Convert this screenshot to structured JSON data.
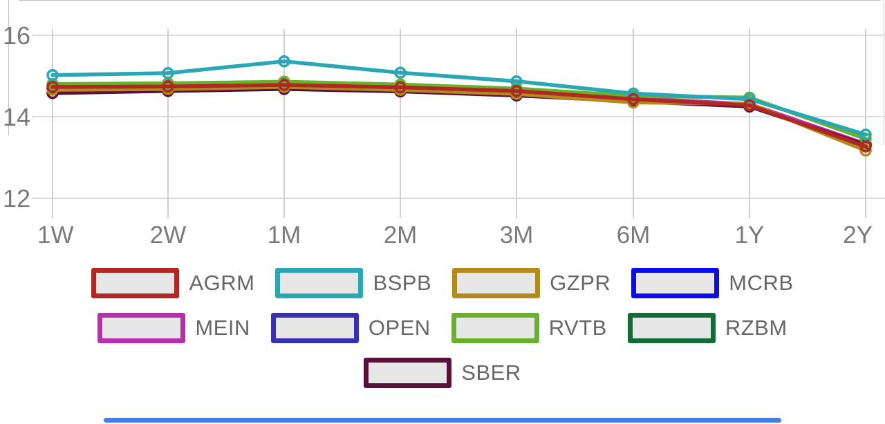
{
  "chart_data": {
    "type": "line",
    "x_categories": [
      "1W",
      "2W",
      "1M",
      "2M",
      "3M",
      "6M",
      "1Y",
      "2Y"
    ],
    "y_ticks": [
      16,
      14,
      12
    ],
    "ylim": [
      11.5,
      16.85
    ],
    "grid": true,
    "legend_position": "bottom",
    "series": [
      {
        "name": "AGRM",
        "color": "#b12823",
        "values": [
          14.73,
          14.74,
          14.78,
          14.72,
          14.63,
          14.43,
          14.28,
          13.27
        ]
      },
      {
        "name": "BSPB",
        "color": "#2ba7b4",
        "values": [
          15.02,
          15.07,
          15.36,
          15.08,
          14.87,
          14.57,
          14.43,
          13.56
        ]
      },
      {
        "name": "GZPR",
        "color": "#b5891c",
        "values": [
          14.66,
          14.68,
          14.73,
          14.66,
          14.56,
          14.35,
          14.32,
          13.17
        ]
      },
      {
        "name": "MCRB",
        "color": "#0b0bf0",
        "values": [
          14.7,
          14.71,
          14.76,
          14.7,
          14.6,
          14.41,
          14.3,
          13.3
        ]
      },
      {
        "name": "MEIN",
        "color": "#b72fae",
        "values": [
          14.77,
          14.77,
          14.81,
          14.74,
          14.64,
          14.45,
          14.31,
          13.33
        ]
      },
      {
        "name": "OPEN",
        "color": "#382fb2",
        "values": [
          14.69,
          14.7,
          14.75,
          14.69,
          14.59,
          14.42,
          14.29,
          13.29
        ]
      },
      {
        "name": "RVTB",
        "color": "#68b22b",
        "values": [
          14.8,
          14.82,
          14.86,
          14.79,
          14.69,
          14.51,
          14.47,
          13.46
        ]
      },
      {
        "name": "RZBM",
        "color": "#156b35",
        "values": [
          14.68,
          14.7,
          14.74,
          14.68,
          14.58,
          14.4,
          14.3,
          13.32
        ]
      },
      {
        "name": "SBER",
        "color": "#581139",
        "values": [
          14.58,
          14.63,
          14.68,
          14.62,
          14.52,
          14.38,
          14.25,
          13.31
        ]
      }
    ],
    "draw_order": [
      "MCRB",
      "OPEN",
      "RZBM",
      "MEIN",
      "SBER",
      "GZPR",
      "RVTB",
      "BSPB",
      "AGRM"
    ]
  },
  "legend": {
    "rows": [
      [
        "AGRM",
        "BSPB",
        "GZPR",
        "MCRB"
      ],
      [
        "MEIN",
        "OPEN",
        "RVTB",
        "RZBM"
      ],
      [
        "SBER"
      ]
    ]
  },
  "chrome": {
    "axis_text_color": "#7a7a7a",
    "h_grid_color": "#dedede",
    "v_grid_color": "#cfcfcf",
    "accent_bar_color": "#3e7df6"
  }
}
